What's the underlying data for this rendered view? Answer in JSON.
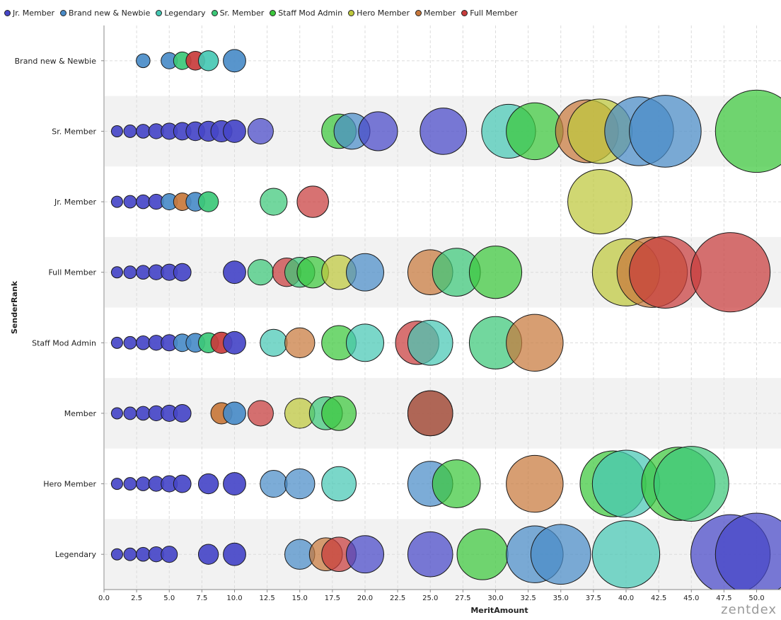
{
  "watermark": "zentdex",
  "chart_data": {
    "type": "scatter",
    "subtype": "bubble",
    "xlabel": "MeritAmount",
    "ylabel": "SenderRank",
    "xlim": [
      0,
      51.5
    ],
    "xticks": [
      "0.0",
      "2.5",
      "5.0",
      "7.5",
      "10.0",
      "12.5",
      "15.0",
      "17.5",
      "20.0",
      "22.5",
      "25.0",
      "27.5",
      "30.0",
      "32.5",
      "35.0",
      "37.5",
      "40.0",
      "42.5",
      "45.0",
      "47.5",
      "50.0"
    ],
    "categories": [
      "Brand new & Newbie",
      "Sr. Member",
      "Jr. Member",
      "Full Member",
      "Staff Mod Admin",
      "Member",
      "Hero Member",
      "Legendary"
    ],
    "legend_position": "top-left",
    "grid": true,
    "bubble_size": "proportional to MeritAmount",
    "series": [
      {
        "name": "Jr. Member",
        "color": "#4646c8",
        "points": [
          {
            "rank": "Sr. Member",
            "x": [
              1,
              2,
              3,
              4,
              5,
              6,
              7,
              8,
              9,
              10,
              12,
              21,
              26
            ]
          },
          {
            "rank": "Jr. Member",
            "x": [
              1,
              2,
              3,
              4
            ]
          },
          {
            "rank": "Full Member",
            "x": [
              1,
              2,
              3,
              4,
              5,
              6,
              10
            ]
          },
          {
            "rank": "Staff Mod Admin",
            "x": [
              1,
              2,
              3,
              4,
              5,
              10
            ]
          },
          {
            "rank": "Member",
            "x": [
              1,
              2,
              3,
              4,
              5,
              6
            ]
          },
          {
            "rank": "Hero Member",
            "x": [
              1,
              2,
              3,
              4,
              5,
              6,
              8,
              10
            ]
          },
          {
            "rank": "Legendary",
            "x": [
              1,
              2,
              3,
              4,
              5,
              8,
              10,
              20,
              25,
              48,
              50
            ]
          }
        ]
      },
      {
        "name": "Brand new & Newbie",
        "color": "#4a8cc8",
        "points": [
          {
            "rank": "Brand new & Newbie",
            "x": [
              3,
              5,
              10
            ]
          },
          {
            "rank": "Sr. Member",
            "x": [
              19,
              41,
              43
            ]
          },
          {
            "rank": "Jr. Member",
            "x": [
              5,
              7
            ]
          },
          {
            "rank": "Full Member",
            "x": [
              20
            ]
          },
          {
            "rank": "Staff Mod Admin",
            "x": [
              6,
              7
            ]
          },
          {
            "rank": "Member",
            "x": [
              10
            ]
          },
          {
            "rank": "Hero Member",
            "x": [
              13,
              15,
              25
            ]
          },
          {
            "rank": "Legendary",
            "x": [
              15,
              33,
              35
            ]
          }
        ]
      },
      {
        "name": "Legendary",
        "color": "#46c8b4",
        "points": [
          {
            "rank": "Brand new & Newbie",
            "x": [
              8
            ]
          },
          {
            "rank": "Sr. Member",
            "x": [
              31
            ]
          },
          {
            "rank": "Staff Mod Admin",
            "x": [
              13,
              20,
              25
            ]
          },
          {
            "rank": "Hero Member",
            "x": [
              18,
              40
            ]
          },
          {
            "rank": "Legendary",
            "x": [
              40
            ]
          }
        ]
      },
      {
        "name": "Sr. Member",
        "color": "#3cc878",
        "points": [
          {
            "rank": "Brand new & Newbie",
            "x": [
              6
            ]
          },
          {
            "rank": "Jr. Member",
            "x": [
              8,
              13
            ]
          },
          {
            "rank": "Full Member",
            "x": [
              12,
              15,
              27
            ]
          },
          {
            "rank": "Staff Mod Admin",
            "x": [
              8,
              30
            ]
          },
          {
            "rank": "Member",
            "x": [
              17,
              25
            ]
          },
          {
            "rank": "Hero Member",
            "x": [
              45
            ]
          }
        ]
      },
      {
        "name": "Staff Mod Admin",
        "color": "#3cc83c",
        "points": [
          {
            "rank": "Sr. Member",
            "x": [
              18,
              33,
              50
            ]
          },
          {
            "rank": "Full Member",
            "x": [
              16,
              30
            ]
          },
          {
            "rank": "Staff Mod Admin",
            "x": [
              18
            ]
          },
          {
            "rank": "Member",
            "x": [
              18
            ]
          },
          {
            "rank": "Hero Member",
            "x": [
              27,
              39,
              44
            ]
          },
          {
            "rank": "Legendary",
            "x": [
              29
            ]
          }
        ]
      },
      {
        "name": "Hero Member",
        "color": "#bec83c",
        "points": [
          {
            "rank": "Sr. Member",
            "x": [
              38
            ]
          },
          {
            "rank": "Jr. Member",
            "x": [
              38
            ]
          },
          {
            "rank": "Full Member",
            "x": [
              18,
              40
            ]
          },
          {
            "rank": "Member",
            "x": [
              15
            ]
          }
        ]
      },
      {
        "name": "Member",
        "color": "#c8783c",
        "points": [
          {
            "rank": "Sr. Member",
            "x": [
              37
            ]
          },
          {
            "rank": "Jr. Member",
            "x": [
              6
            ]
          },
          {
            "rank": "Full Member",
            "x": [
              25,
              42
            ]
          },
          {
            "rank": "Staff Mod Admin",
            "x": [
              15,
              33
            ]
          },
          {
            "rank": "Member",
            "x": [
              9
            ]
          },
          {
            "rank": "Hero Member",
            "x": [
              33
            ]
          },
          {
            "rank": "Legendary",
            "x": [
              17
            ]
          }
        ]
      },
      {
        "name": "Full Member",
        "color": "#c83c3c",
        "points": [
          {
            "rank": "Brand new & Newbie",
            "x": [
              7
            ]
          },
          {
            "rank": "Jr. Member",
            "x": [
              16
            ]
          },
          {
            "rank": "Full Member",
            "x": [
              14,
              43,
              48
            ]
          },
          {
            "rank": "Staff Mod Admin",
            "x": [
              9,
              24
            ]
          },
          {
            "rank": "Member",
            "x": [
              12,
              25
            ]
          },
          {
            "rank": "Legendary",
            "x": [
              18
            ]
          }
        ]
      }
    ]
  }
}
